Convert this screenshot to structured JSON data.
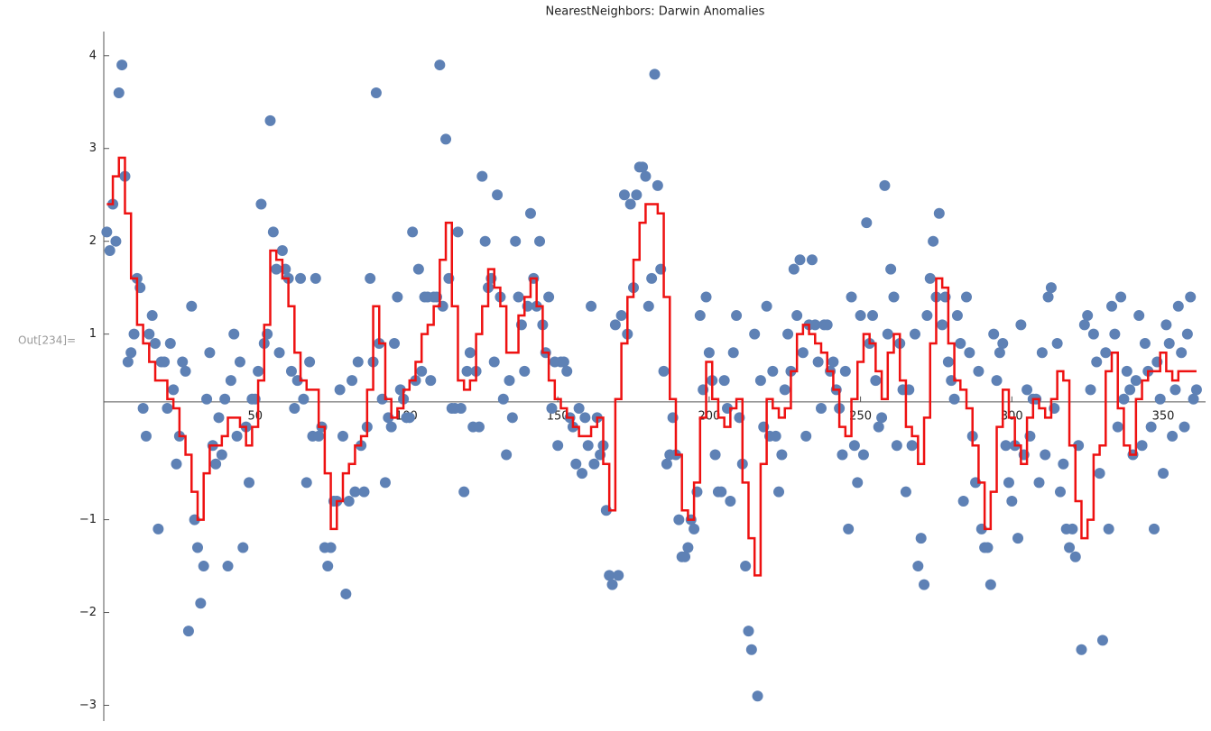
{
  "chart_data": {
    "type": "scatter",
    "title": "NearestNeighbors: Darwin Anomalies",
    "output_label": "Out[234]=",
    "xlim": [
      0,
      364
    ],
    "ylim": [
      -3.17,
      4.26
    ],
    "axes_origin": [
      0,
      0.27
    ],
    "xticks": [
      50,
      100,
      150,
      200,
      250,
      300,
      350
    ],
    "yticks": [
      {
        "value": -3,
        "label": "−3"
      },
      {
        "value": -2,
        "label": "−2"
      },
      {
        "value": -1,
        "label": "−1"
      },
      1,
      2,
      3,
      4
    ],
    "series": [
      {
        "type": "scatter",
        "color": "#5e81b5",
        "x": [
          1,
          2,
          3,
          4,
          5,
          6,
          7,
          8,
          9,
          10,
          11,
          12,
          13,
          14,
          15,
          16,
          17,
          18,
          19,
          20,
          21,
          22,
          23,
          24,
          25,
          26,
          27,
          28,
          29,
          30,
          31,
          32,
          33,
          34,
          35,
          36,
          37,
          38,
          39,
          40,
          41,
          42,
          43,
          44,
          45,
          46,
          47,
          48,
          49,
          50,
          51,
          52,
          53,
          54,
          55,
          56,
          57,
          58,
          59,
          60,
          61,
          62,
          63,
          64,
          65,
          66,
          67,
          68,
          69,
          70,
          71,
          72,
          73,
          74,
          75,
          76,
          77,
          78,
          79,
          80,
          81,
          82,
          83,
          84,
          85,
          86,
          87,
          88,
          89,
          90,
          91,
          92,
          93,
          94,
          95,
          96,
          97,
          98,
          99,
          100,
          101,
          102,
          103,
          104,
          105,
          106,
          107,
          108,
          109,
          110,
          111,
          112,
          113,
          114,
          115,
          116,
          117,
          118,
          119,
          120,
          121,
          122,
          123,
          124,
          125,
          126,
          127,
          128,
          129,
          130,
          131,
          132,
          133,
          134,
          135,
          136,
          137,
          138,
          139,
          140,
          141,
          142,
          143,
          144,
          145,
          146,
          147,
          148,
          149,
          150,
          151,
          152,
          153,
          154,
          155,
          156,
          157,
          158,
          159,
          160,
          161,
          162,
          163,
          164,
          165,
          166,
          167,
          168,
          169,
          170,
          171,
          172,
          173,
          174,
          175,
          176,
          177,
          178,
          179,
          180,
          181,
          182,
          183,
          184,
          185,
          186,
          187,
          188,
          189,
          190,
          191,
          192,
          193,
          194,
          195,
          196,
          197,
          198,
          199,
          200,
          201,
          202,
          203,
          204,
          205,
          206,
          207,
          208,
          209,
          210,
          211,
          212,
          213,
          214,
          215,
          216,
          217,
          218,
          219,
          220,
          221,
          222,
          223,
          224,
          225,
          226,
          227,
          228,
          229,
          230,
          231,
          232,
          233,
          234,
          235,
          236,
          237,
          238,
          239,
          240,
          241,
          242,
          243,
          244,
          245,
          246,
          247,
          248,
          249,
          250,
          251,
          252,
          253,
          254,
          255,
          256,
          257,
          258,
          259,
          260,
          261,
          262,
          263,
          264,
          265,
          266,
          267,
          268,
          269,
          270,
          271,
          272,
          273,
          274,
          275,
          276,
          277,
          278,
          279,
          280,
          281,
          282,
          283,
          284,
          285,
          286,
          287,
          288,
          289,
          290,
          291,
          292,
          293,
          294,
          295,
          296,
          297,
          298,
          299,
          300,
          301,
          302,
          303,
          304,
          305,
          306,
          307,
          308,
          309,
          310,
          311,
          312,
          313,
          314,
          315,
          316,
          317,
          318,
          319,
          320,
          321,
          322,
          323,
          324,
          325,
          326,
          327,
          328,
          329,
          330,
          331,
          332,
          333,
          334,
          335,
          336,
          337,
          338,
          339,
          340,
          341,
          342,
          343,
          344,
          345,
          346,
          347,
          348,
          349,
          350,
          351,
          352,
          353,
          354,
          355,
          356,
          357,
          358,
          359,
          360,
          361
        ],
        "values": [
          2.1,
          1.9,
          2.4,
          2.0,
          3.6,
          3.9,
          2.7,
          0.7,
          0.8,
          1.0,
          1.6,
          1.5,
          0.2,
          -0.1,
          1.0,
          1.2,
          0.9,
          -1.1,
          0.7,
          0.7,
          0.2,
          0.9,
          0.4,
          -0.4,
          -0.1,
          0.7,
          0.6,
          -2.2,
          1.3,
          -1.0,
          -1.3,
          -1.9,
          -1.5,
          0.3,
          0.8,
          -0.2,
          -0.4,
          0.1,
          -0.3,
          0.3,
          -1.5,
          0.5,
          1.0,
          -0.1,
          0.7,
          -1.3,
          0.0,
          -0.6,
          0.3,
          0.3,
          0.6,
          2.4,
          0.9,
          1.0,
          3.3,
          2.1,
          1.7,
          0.8,
          1.9,
          1.7,
          1.6,
          0.6,
          0.2,
          0.5,
          1.6,
          0.3,
          -0.6,
          0.7,
          -0.1,
          1.6,
          -0.1,
          0.0,
          -1.3,
          -1.5,
          -1.3,
          -0.8,
          -0.8,
          0.4,
          -0.1,
          -1.8,
          -0.8,
          0.5,
          -0.7,
          0.7,
          -0.2,
          -0.7,
          0.0,
          1.6,
          0.7,
          3.6,
          0.9,
          0.3,
          -0.6,
          0.1,
          0.0,
          0.9,
          1.4,
          0.4,
          0.3,
          0.1,
          0.1,
          2.1,
          0.5,
          1.7,
          0.6,
          1.4,
          1.4,
          0.5,
          1.4,
          1.4,
          3.9,
          1.3,
          3.1,
          1.6,
          0.2,
          0.2,
          2.1,
          0.2,
          -0.7,
          0.6,
          0.8,
          0.0,
          0.6,
          0.0,
          2.7,
          2.0,
          1.5,
          1.6,
          0.7,
          2.5,
          1.4,
          0.3,
          -0.3,
          0.5,
          0.1,
          2.0,
          1.4,
          1.1,
          0.6,
          1.3,
          2.3,
          1.6,
          1.3,
          2.0,
          1.1,
          0.8,
          1.4,
          0.2,
          0.7,
          -0.2,
          0.7,
          0.7,
          0.6,
          0.1,
          0.0,
          -0.4,
          0.2,
          -0.5,
          0.1,
          -0.2,
          1.3,
          -0.4,
          0.1,
          -0.3,
          -0.2,
          -0.9,
          -1.6,
          -1.7,
          1.1,
          -1.6,
          1.2,
          2.5,
          1.0,
          2.4,
          1.5,
          2.5,
          2.8,
          2.8,
          2.7,
          1.3,
          1.6,
          3.8,
          2.6,
          1.7,
          0.6,
          -0.4,
          -0.3,
          0.1,
          -0.3,
          -1.0,
          -1.4,
          -1.4,
          -1.3,
          -1.0,
          -1.1,
          -0.7,
          1.2,
          0.4,
          1.4,
          0.8,
          0.5,
          -0.3,
          -0.7,
          -0.7,
          0.5,
          0.2,
          -0.8,
          0.8,
          1.2,
          0.1,
          -0.4,
          -1.5,
          -2.2,
          -2.4,
          1.0,
          -2.9,
          0.5,
          0.0,
          1.3,
          -0.1,
          0.6,
          -0.1,
          -0.7,
          -0.3,
          0.4,
          1.0,
          0.6,
          1.7,
          1.2,
          1.8,
          0.8,
          -0.1,
          1.1,
          1.8,
          1.1,
          0.7,
          0.2,
          1.1,
          1.1,
          0.6,
          0.7,
          0.4,
          0.2,
          -0.3,
          0.6,
          -1.1,
          1.4,
          -0.2,
          -0.6,
          1.2,
          -0.3,
          2.2,
          0.9,
          1.2,
          0.5,
          0.0,
          0.1,
          2.6,
          1.0,
          1.7,
          1.4,
          -0.2,
          0.9,
          0.4,
          -0.7,
          0.4,
          -0.2,
          1.0,
          -1.5,
          -1.2,
          -1.7,
          1.2,
          1.6,
          2.0,
          1.4,
          2.3,
          1.1,
          1.4,
          0.7,
          0.5,
          0.3,
          1.2,
          0.9,
          -0.8,
          1.4,
          0.8,
          -0.1,
          -0.6,
          0.6,
          -1.1,
          -1.3,
          -1.3,
          -1.7,
          1.0,
          0.5,
          0.8,
          0.9,
          -0.2,
          -0.6,
          -0.8,
          -0.2,
          -1.2,
          1.1,
          -0.3,
          0.4,
          -0.1,
          0.3,
          0.3,
          -0.6,
          0.8,
          -0.3,
          1.4,
          1.5,
          0.2,
          0.9,
          -0.7,
          -0.4,
          -1.1,
          -1.3,
          -1.1,
          -1.4,
          -0.2,
          -2.4,
          1.1,
          1.2,
          0.4,
          1.0,
          0.7,
          -0.5,
          -2.3,
          0.8,
          -1.1,
          1.3,
          1.0,
          0.0,
          1.4,
          0.3,
          0.6,
          0.4,
          -0.3,
          0.5,
          1.2,
          -0.2,
          0.9,
          0.6,
          0.0,
          -1.1,
          0.7,
          0.3,
          -0.5,
          1.1,
          0.9,
          -0.1,
          0.4,
          1.3,
          0.8,
          0.0,
          1.0,
          1.4,
          0.3,
          0.4
        ]
      },
      {
        "type": "step",
        "color": "#ee1111",
        "x": [
          1,
          3,
          5,
          7,
          9,
          11,
          13,
          15,
          17,
          19,
          21,
          23,
          25,
          27,
          29,
          31,
          33,
          35,
          37,
          39,
          41,
          43,
          45,
          47,
          49,
          51,
          53,
          55,
          57,
          59,
          61,
          63,
          65,
          67,
          69,
          71,
          73,
          75,
          77,
          79,
          81,
          83,
          85,
          87,
          89,
          91,
          93,
          95,
          97,
          99,
          101,
          103,
          105,
          107,
          109,
          111,
          113,
          115,
          117,
          119,
          121,
          123,
          125,
          127,
          129,
          131,
          133,
          135,
          137,
          139,
          141,
          143,
          145,
          147,
          149,
          151,
          153,
          155,
          157,
          159,
          161,
          163,
          165,
          167,
          169,
          171,
          173,
          175,
          177,
          179,
          181,
          183,
          185,
          187,
          189,
          191,
          193,
          195,
          197,
          199,
          201,
          203,
          205,
          207,
          209,
          211,
          213,
          215,
          217,
          219,
          221,
          223,
          225,
          227,
          229,
          231,
          233,
          235,
          237,
          239,
          241,
          243,
          245,
          247,
          249,
          251,
          253,
          255,
          257,
          259,
          261,
          263,
          265,
          267,
          269,
          271,
          273,
          275,
          277,
          279,
          281,
          283,
          285,
          287,
          289,
          291,
          293,
          295,
          297,
          299,
          301,
          303,
          305,
          307,
          309,
          311,
          313,
          315,
          317,
          319,
          321,
          323,
          325,
          327,
          329,
          331,
          333,
          335,
          337,
          339,
          341,
          343,
          345,
          347,
          349,
          351,
          353,
          355,
          357,
          359,
          361
        ],
        "values": [
          2.4,
          2.7,
          2.9,
          2.3,
          1.6,
          1.1,
          0.9,
          0.7,
          0.5,
          0.5,
          0.3,
          0.2,
          -0.1,
          -0.3,
          -0.7,
          -1.0,
          -0.5,
          -0.2,
          -0.2,
          -0.1,
          0.1,
          0.1,
          0.0,
          -0.2,
          0.0,
          0.5,
          1.1,
          1.9,
          1.8,
          1.6,
          1.3,
          0.8,
          0.5,
          0.4,
          0.4,
          0.0,
          -0.5,
          -1.1,
          -0.8,
          -0.5,
          -0.4,
          -0.2,
          -0.1,
          0.4,
          1.3,
          0.9,
          0.3,
          0.1,
          0.2,
          0.4,
          0.5,
          0.7,
          1.0,
          1.1,
          1.3,
          1.8,
          2.2,
          1.3,
          0.5,
          0.4,
          0.5,
          1.0,
          1.3,
          1.7,
          1.5,
          1.3,
          0.8,
          0.8,
          1.2,
          1.4,
          1.6,
          1.3,
          0.8,
          0.5,
          0.3,
          0.2,
          0.1,
          0.0,
          -0.1,
          -0.1,
          0.0,
          0.1,
          -0.4,
          -0.9,
          0.3,
          0.9,
          1.4,
          1.8,
          2.2,
          2.4,
          2.4,
          2.3,
          1.4,
          0.3,
          -0.3,
          -0.9,
          -1.0,
          -0.6,
          0.1,
          0.7,
          0.3,
          0.1,
          0.0,
          0.2,
          0.3,
          -0.6,
          -1.2,
          -1.6,
          -0.4,
          0.3,
          0.2,
          0.1,
          0.2,
          0.6,
          1.0,
          1.1,
          1.0,
          0.9,
          0.8,
          0.6,
          0.4,
          0.0,
          -0.1,
          0.3,
          0.7,
          1.0,
          0.9,
          0.6,
          0.3,
          0.8,
          1.0,
          0.5,
          0.0,
          -0.1,
          -0.4,
          0.1,
          0.9,
          1.6,
          1.5,
          0.9,
          0.5,
          0.4,
          0.2,
          -0.2,
          -0.6,
          -1.1,
          -0.7,
          0.0,
          0.4,
          0.1,
          -0.2,
          -0.4,
          0.1,
          0.3,
          0.2,
          0.1,
          0.3,
          0.6,
          0.5,
          -0.2,
          -0.8,
          -1.2,
          -1.0,
          -0.3,
          -0.2,
          0.6,
          0.8,
          0.2,
          -0.2,
          -0.3,
          0.3,
          0.5,
          0.6,
          0.6,
          0.8,
          0.6,
          0.5,
          0.6,
          0.6,
          0.6,
          0.6
        ]
      }
    ]
  }
}
